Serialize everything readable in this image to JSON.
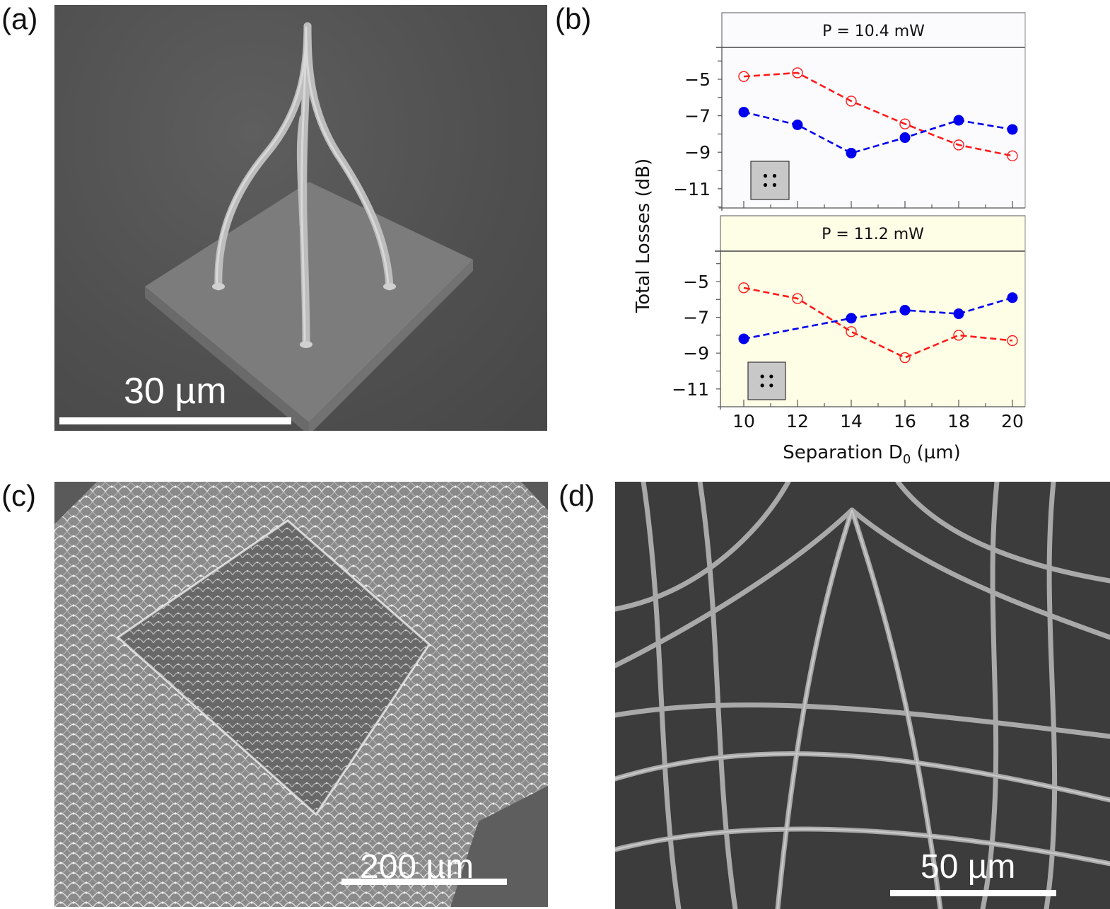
{
  "panels": {
    "a": {
      "label": "(a)",
      "description": "SEM image of a four-legged fibre tripod structure on a square pedestal",
      "scale_bar": "30 µm"
    },
    "b": {
      "label": "(b)"
    },
    "c": {
      "label": "(c)",
      "description": "SEM image of a large woven fibre lattice with a raised square dome",
      "scale_bar": "200 µm"
    },
    "d": {
      "label": "(d)",
      "description": "Close-up SEM image of interwoven fibre network",
      "scale_bar": "50 µm"
    }
  },
  "colors": {
    "red_series": "#ff1a1a",
    "blue_series": "#0000ee",
    "top_panel_bg": "#fbfbfe",
    "bottom_panel_bg": "#fefde6",
    "inset_box": "#c8c8c8"
  },
  "chart_data": {
    "type": "line",
    "ylabel": "Total Losses (dB)",
    "xlabel": "Separation D0 (µm)",
    "xlabel_main": "Separation D",
    "xlabel_sub": "0",
    "xlabel_unit": " (µm)",
    "x_ticks": [
      10,
      12,
      14,
      16,
      18,
      20
    ],
    "y_ticks": [
      -5,
      -7,
      -9,
      -11
    ],
    "y_tick_labels": [
      "−5",
      "−7",
      "−9",
      "−11"
    ],
    "xlim": [
      9.2,
      20.5
    ],
    "legend": "none",
    "subplots": [
      {
        "title": "P = 10.4 mW",
        "ylim": [
          -12,
          -3.8
        ],
        "series": [
          {
            "name": "open red circles",
            "marker": "open-circle",
            "color": "#ff1a1a",
            "x": [
              10,
              12,
              14,
              16,
              18,
              20
            ],
            "values": [
              -4.85,
              -4.65,
              -6.2,
              -7.45,
              -8.6,
              -9.2
            ]
          },
          {
            "name": "filled blue circles",
            "marker": "filled-circle",
            "color": "#0000ee",
            "x": [
              10,
              12,
              14,
              16,
              18,
              20
            ],
            "values": [
              -6.8,
              -7.5,
              -9.05,
              -8.2,
              -7.25,
              -7.75
            ]
          }
        ]
      },
      {
        "title": "P = 11.2 mW",
        "ylim": [
          -12,
          -3.9
        ],
        "series": [
          {
            "name": "open red circles",
            "marker": "open-circle",
            "color": "#ff1a1a",
            "x": [
              10,
              12,
              14,
              16,
              18,
              20
            ],
            "values": [
              -5.35,
              -5.95,
              -7.8,
              -9.25,
              -8.0,
              -8.3
            ]
          },
          {
            "name": "filled blue circles",
            "marker": "filled-circle",
            "color": "#0000ee",
            "x": [
              10,
              14,
              16,
              18,
              20
            ],
            "values": [
              -8.2,
              -7.05,
              -6.6,
              -6.8,
              -5.9
            ]
          }
        ]
      }
    ]
  }
}
